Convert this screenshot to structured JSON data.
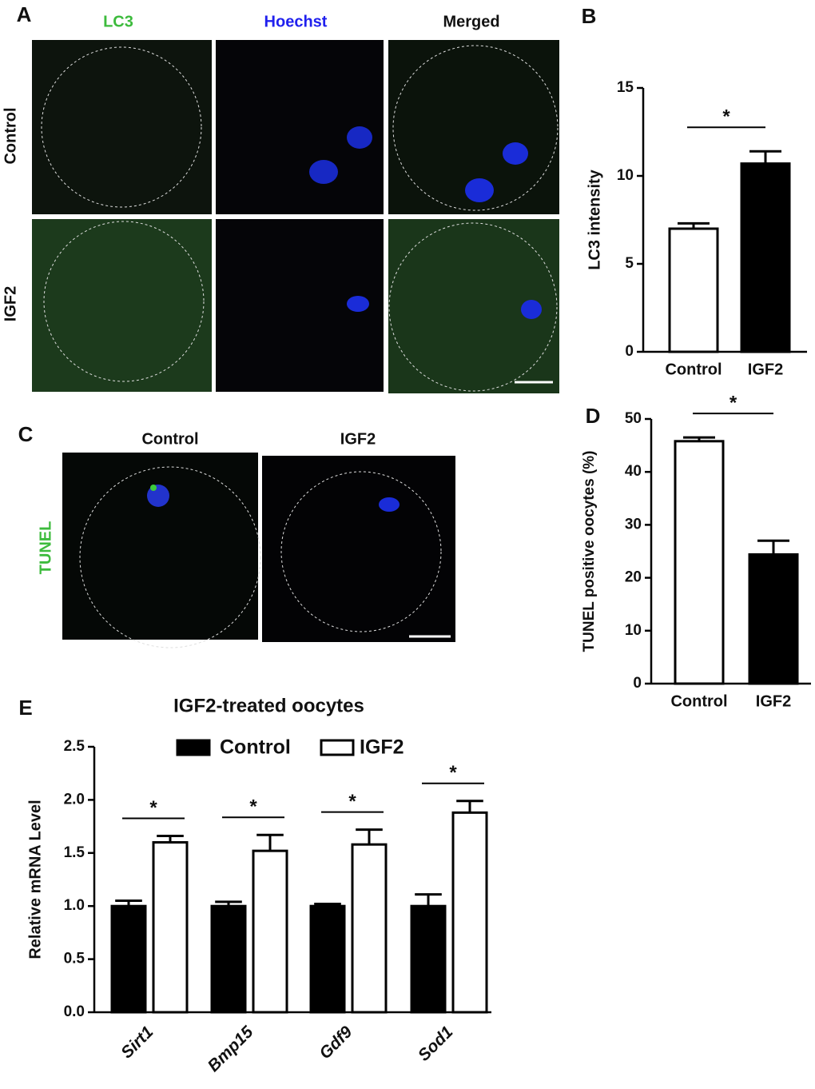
{
  "figure": {
    "panels": [
      "A",
      "B",
      "C",
      "D",
      "E"
    ],
    "a_columns": [
      "LC3",
      "Hoechst",
      "Merged"
    ],
    "a_rows": [
      "Control",
      "IGF2"
    ],
    "c_columns": [
      "Control",
      "IGF2"
    ],
    "c_row": "TUNEL"
  },
  "chart_data": [
    {
      "type": "bar",
      "ylabel": "LC3 intensity",
      "categories": [
        "Control",
        "IGF2"
      ],
      "values": [
        7.0,
        10.7
      ],
      "errors": [
        0.3,
        0.7
      ],
      "colors": [
        "#ffffff",
        "#000000"
      ],
      "ylim": [
        0,
        15
      ],
      "yticks": [
        0,
        5,
        10,
        15
      ],
      "significance": [
        "*"
      ]
    },
    {
      "type": "bar",
      "ylabel": "TUNEL positive oocytes (%)",
      "categories": [
        "Control",
        "IGF2"
      ],
      "values": [
        45.8,
        24.4
      ],
      "errors": [
        0.7,
        2.6
      ],
      "colors": [
        "#ffffff",
        "#000000"
      ],
      "ylim": [
        0,
        50
      ],
      "yticks": [
        0,
        10,
        20,
        30,
        40,
        50
      ],
      "significance": [
        "*"
      ]
    },
    {
      "type": "grouped-bar",
      "title": "IGF2-treated oocytes",
      "ylabel": "Relative mRNA Level",
      "categories": [
        "Sirt1",
        "Bmp15",
        "Gdf9",
        "Sod1"
      ],
      "series": [
        {
          "name": "Control",
          "color": "#000000",
          "values": [
            1.0,
            1.0,
            1.0,
            1.0
          ],
          "errors": [
            0.05,
            0.04,
            0.02,
            0.11
          ]
        },
        {
          "name": "IGF2",
          "color": "#ffffff",
          "values": [
            1.6,
            1.52,
            1.58,
            1.88
          ],
          "errors": [
            0.06,
            0.15,
            0.14,
            0.11
          ]
        }
      ],
      "ylim": [
        0,
        2.5
      ],
      "yticks": [
        {
          "value": 0,
          "label": "0.0"
        },
        0.5,
        {
          "value": 1,
          "label": "1.0"
        },
        1.5,
        {
          "value": 2,
          "label": "2.0"
        },
        2.5
      ],
      "significance": [
        "*",
        "*",
        "*",
        "*"
      ]
    }
  ]
}
